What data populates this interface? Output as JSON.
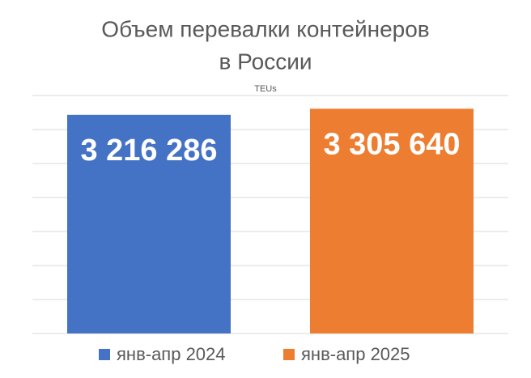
{
  "chart_data": {
    "type": "bar",
    "title": [
      "Объем перевалки контейнеров",
      "в России"
    ],
    "subtitle": "TEUs",
    "categories": [
      null
    ],
    "series": [
      {
        "name": "янв-апр 2024",
        "color": "#4472c4",
        "values": [
          3216286
        ],
        "value_labels": [
          "3 216 286"
        ]
      },
      {
        "name": "янв-апр 2025",
        "color": "#ed7d31",
        "values": [
          3305640
        ],
        "value_labels": [
          "3 305 640"
        ]
      }
    ],
    "ylim": [
      0,
      3500000
    ],
    "yticks": [
      0,
      500000,
      1000000,
      1500000,
      2000000,
      2500000,
      3000000,
      3500000
    ],
    "grid": true,
    "legend": "bottom"
  }
}
